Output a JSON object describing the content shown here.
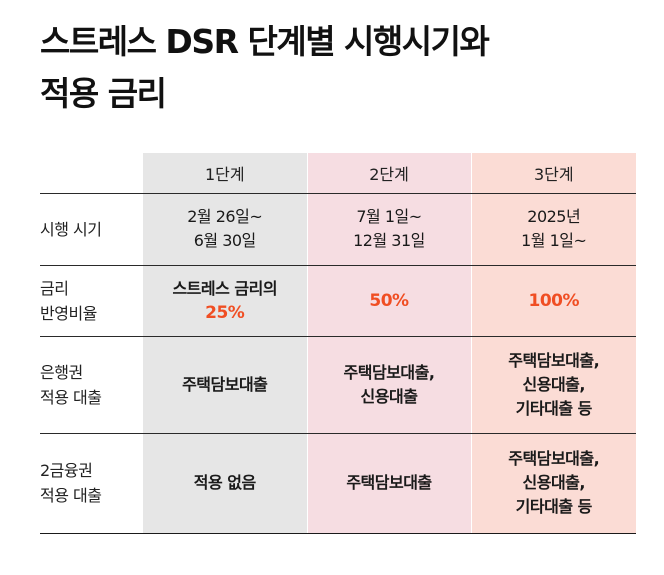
{
  "title": {
    "line1": "스트레스 DSR 단계별 시행시기와",
    "line2": "적용 금리"
  },
  "table": {
    "stages": [
      "1단계",
      "2단계",
      "3단계"
    ],
    "rows": {
      "timing": {
        "label": "시행 시기",
        "values": [
          [
            "2월 26일~",
            "6월 30일"
          ],
          [
            "7월 1일~",
            "12월 31일"
          ],
          [
            "2025년",
            "1월 1일~"
          ]
        ]
      },
      "rate": {
        "label": [
          "금리",
          "반영비율"
        ],
        "stage1_text": "스트레스 금리의",
        "values": [
          "25%",
          "50%",
          "100%"
        ]
      },
      "bank": {
        "label": [
          "은행권",
          "적용 대출"
        ],
        "values": [
          [
            "주택담보대출"
          ],
          [
            "주택담보대출,",
            "신용대출"
          ],
          [
            "주택담보대출,",
            "신용대출,",
            "기타대출 등"
          ]
        ]
      },
      "second": {
        "label": [
          "2금융권",
          "적용 대출"
        ],
        "values": [
          [
            "적용 없음"
          ],
          [
            "주택담보대출"
          ],
          [
            "주택담보대출,",
            "신용대출,",
            "기타대출 등"
          ]
        ]
      }
    }
  },
  "colors": {
    "stage1_bg": "#e6e6e6",
    "stage2_bg": "#f6dde2",
    "stage3_bg": "#fbdcd5",
    "accent": "#f04e23"
  }
}
